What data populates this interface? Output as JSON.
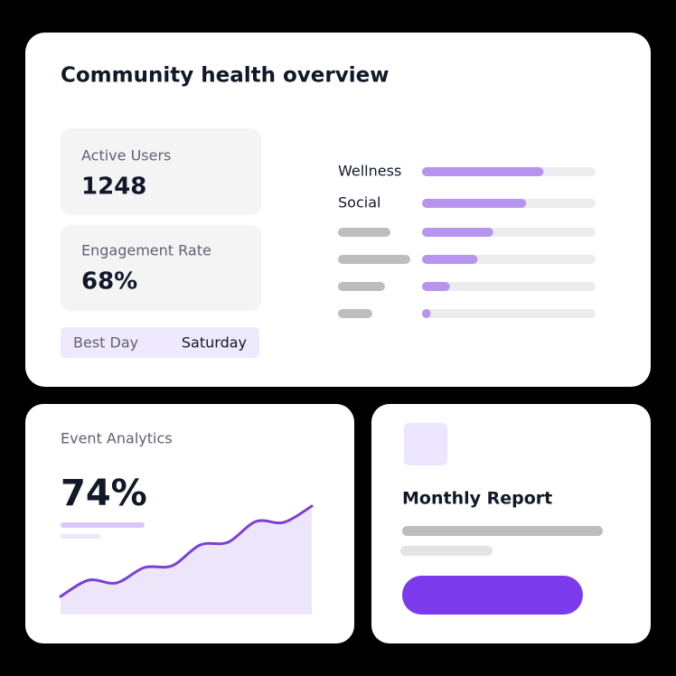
{
  "overview": {
    "title": "Community health overview",
    "stats": [
      {
        "label": "Active Users",
        "value": "1248"
      },
      {
        "label": "Engagement Rate",
        "value": "68%"
      }
    ],
    "best_day": {
      "label": "Best Day",
      "value": "Saturday"
    },
    "bars": {
      "labels": [
        "Wellness",
        "Social",
        null,
        null,
        null,
        null
      ],
      "values": [
        70,
        60,
        41,
        32,
        16,
        5
      ],
      "max": 100
    }
  },
  "events": {
    "title": "Event Analytics",
    "value": "74%",
    "trend": [
      20,
      38,
      35,
      52,
      54,
      77,
      80,
      103,
      102,
      120
    ]
  },
  "report": {
    "title": "Monthly Report"
  }
}
